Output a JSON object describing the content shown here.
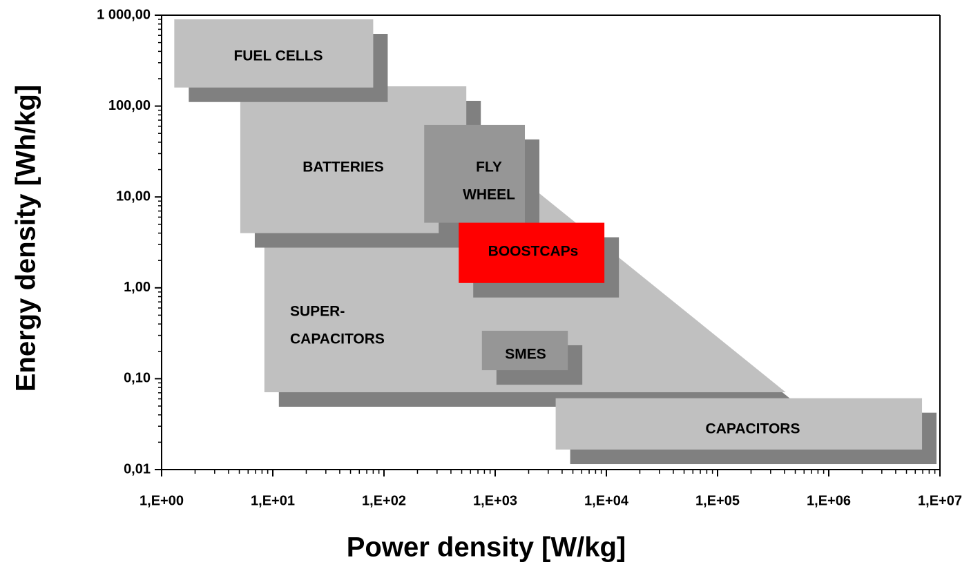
{
  "chart_data": {
    "type": "region",
    "xlabel": "Power density [W/kg]",
    "ylabel": "Energy density [Wh/kg]",
    "xscale": "log",
    "yscale": "log",
    "xlim": [
      1,
      10000000
    ],
    "ylim": [
      0.01,
      1000
    ],
    "xticks": [
      {
        "value": 1,
        "label": "1,E+00"
      },
      {
        "value": 10,
        "label": "1,E+01"
      },
      {
        "value": 100,
        "label": "1,E+02"
      },
      {
        "value": 1000,
        "label": "1,E+03"
      },
      {
        "value": 10000,
        "label": "1,E+04"
      },
      {
        "value": 100000,
        "label": "1,E+05"
      },
      {
        "value": 1000000,
        "label": "1,E+06"
      },
      {
        "value": 10000000,
        "label": "1,E+07"
      }
    ],
    "yticks": [
      {
        "value": 0.01,
        "label": "0,01"
      },
      {
        "value": 0.1,
        "label": "0,10"
      },
      {
        "value": 1,
        "label": "1,00"
      },
      {
        "value": 10,
        "label": "10,00"
      },
      {
        "value": 100,
        "label": "100,00"
      },
      {
        "value": 1000,
        "label": "1 000,00"
      }
    ],
    "shadow_color": "#808080",
    "regions": [
      {
        "label": [
          "SUPER-",
          "CAPACITORS"
        ],
        "color": "#c0c0c0",
        "polygon_x": [
          8.4,
          2100,
          410000,
          8.4
        ],
        "polygon_y": [
          13,
          13,
          0.071,
          0.071
        ]
      },
      {
        "label": [
          "CAPACITORS"
        ],
        "color": "#c0c0c0",
        "x": [
          3500,
          6900000
        ],
        "y": [
          0.0166,
          0.061
        ]
      },
      {
        "label": [
          "BATTERIES"
        ],
        "color": "#c0c0c0",
        "x": [
          5.1,
          550
        ],
        "y": [
          4,
          165
        ]
      },
      {
        "label": [
          "FUEL CELLS"
        ],
        "color": "#c0c0c0",
        "x": [
          1.3,
          80
        ],
        "y": [
          160,
          900
        ]
      },
      {
        "label": [
          "FLY",
          "WHEEL"
        ],
        "color": "#969696",
        "x": [
          230,
          1850
        ],
        "y": [
          5.2,
          62
        ]
      },
      {
        "label": [
          "BOOSTCAPs"
        ],
        "color": "#ff0000",
        "x": [
          470,
          9600
        ],
        "y": [
          1.13,
          5.2
        ]
      },
      {
        "label": [
          "SMES"
        ],
        "color": "#969696",
        "x": [
          760,
          4500
        ],
        "y": [
          0.124,
          0.337
        ]
      }
    ]
  }
}
